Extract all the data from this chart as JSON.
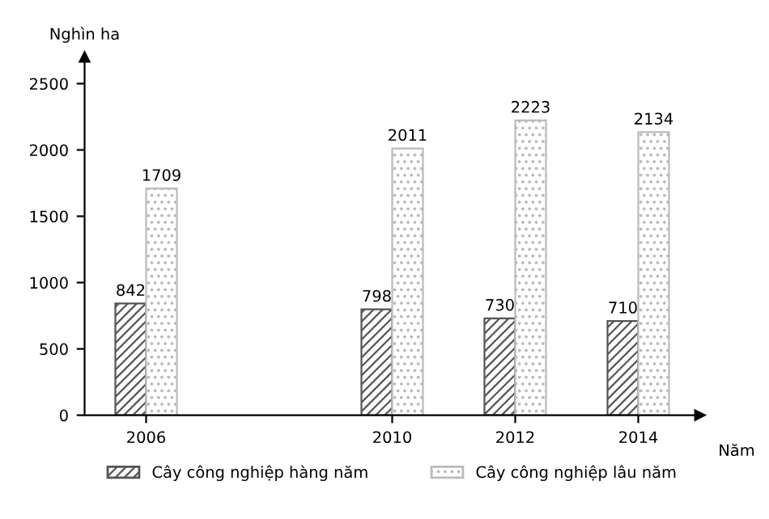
{
  "chart_data": {
    "type": "bar",
    "xlabel": "Năm",
    "ylabel": "Nghìn ha",
    "x": [
      2006,
      2010,
      2012,
      2014
    ],
    "series": [
      {
        "name": "Cây công nghiệp hàng năm",
        "color": "#555555",
        "values": [
          842,
          798,
          730,
          710
        ]
      },
      {
        "name": "Cây công nghiệp lâu năm",
        "color": "#bbbbbb",
        "values": [
          1709,
          2011,
          2223,
          2134
        ]
      }
    ],
    "xlim": [
      2005,
      2015
    ],
    "xticks": [
      2006,
      2010,
      2012,
      2014
    ],
    "ylim": [
      0,
      2700
    ],
    "yticks": [
      0,
      500,
      1000,
      1500,
      2000,
      2500
    ],
    "data_labels": true,
    "grid": false,
    "legend": "bottom"
  }
}
